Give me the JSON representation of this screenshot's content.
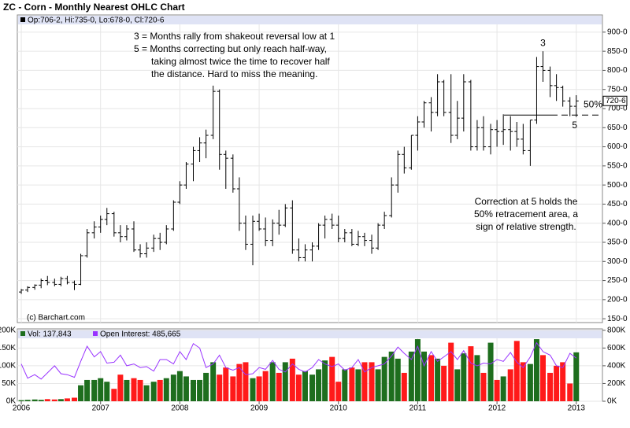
{
  "chart_data": [
    {
      "type": "ohlc",
      "title": "ZC - Corn - Monthly Nearest OHLC Chart",
      "header": "Op:706-2, Hi:735-0, Lo:678-0, Cl:720-6",
      "copyright": "(c) Barchart.com",
      "color": "#000000",
      "x": [
        2006,
        2006.08,
        2006.17,
        2006.25,
        2006.33,
        2006.42,
        2006.5,
        2006.58,
        2006.67,
        2006.75,
        2006.83,
        2006.92,
        2007,
        2007.08,
        2007.17,
        2007.25,
        2007.33,
        2007.42,
        2007.5,
        2007.58,
        2007.67,
        2007.75,
        2007.83,
        2007.92,
        2008,
        2008.08,
        2008.17,
        2008.25,
        2008.33,
        2008.42,
        2008.5,
        2008.58,
        2008.67,
        2008.75,
        2008.83,
        2008.92,
        2009,
        2009.08,
        2009.17,
        2009.25,
        2009.33,
        2009.42,
        2009.5,
        2009.58,
        2009.67,
        2009.75,
        2009.83,
        2009.92,
        2010,
        2010.08,
        2010.17,
        2010.25,
        2010.33,
        2010.42,
        2010.5,
        2010.58,
        2010.67,
        2010.75,
        2010.83,
        2010.92,
        2011,
        2011.08,
        2011.17,
        2011.25,
        2011.33,
        2011.42,
        2011.5,
        2011.58,
        2011.67,
        2011.75,
        2011.83,
        2011.92,
        2012,
        2012.08,
        2012.17,
        2012.25,
        2012.33,
        2012.42,
        2012.5,
        2012.58,
        2012.67,
        2012.75,
        2012.83,
        2012.92,
        2013
      ],
      "open": [
        220,
        225,
        232,
        238,
        250,
        245,
        240,
        255,
        245,
        240,
        315,
        375,
        390,
        410,
        425,
        375,
        365,
        385,
        330,
        320,
        335,
        360,
        350,
        385,
        455,
        500,
        555,
        590,
        610,
        630,
        745,
        580,
        570,
        490,
        400,
        345,
        405,
        385,
        355,
        400,
        395,
        440,
        330,
        310,
        330,
        340,
        395,
        410,
        395,
        360,
        375,
        345,
        365,
        355,
        335,
        395,
        420,
        500,
        580,
        545,
        630,
        665,
        715,
        690,
        770,
        690,
        630,
        675,
        770,
        600,
        650,
        600,
        645,
        640,
        645,
        640,
        620,
        590,
        670,
        810,
        800,
        760,
        755,
        720,
        706
      ],
      "high": [
        228,
        235,
        240,
        255,
        262,
        255,
        260,
        262,
        250,
        320,
        385,
        405,
        420,
        440,
        430,
        395,
        395,
        405,
        345,
        350,
        370,
        375,
        395,
        460,
        510,
        560,
        600,
        625,
        645,
        760,
        750,
        590,
        580,
        520,
        420,
        420,
        425,
        415,
        410,
        435,
        450,
        460,
        360,
        345,
        350,
        400,
        420,
        425,
        420,
        385,
        385,
        380,
        375,
        370,
        400,
        430,
        520,
        590,
        600,
        630,
        680,
        720,
        730,
        790,
        775,
        790,
        720,
        790,
        775,
        670,
        680,
        660,
        670,
        685,
        680,
        665,
        660,
        670,
        835,
        850,
        810,
        790,
        760,
        730,
        735
      ],
      "low": [
        215,
        220,
        226,
        230,
        238,
        235,
        235,
        240,
        225,
        238,
        310,
        360,
        375,
        395,
        365,
        350,
        355,
        325,
        310,
        310,
        325,
        330,
        345,
        380,
        450,
        490,
        510,
        560,
        570,
        620,
        540,
        490,
        480,
        380,
        330,
        290,
        380,
        340,
        340,
        370,
        390,
        320,
        300,
        300,
        300,
        330,
        360,
        385,
        350,
        350,
        340,
        340,
        340,
        320,
        330,
        385,
        415,
        480,
        530,
        540,
        590,
        650,
        640,
        680,
        680,
        610,
        620,
        640,
        590,
        590,
        590,
        580,
        600,
        605,
        590,
        600,
        580,
        550,
        660,
        770,
        730,
        720,
        705,
        680,
        678
      ],
      "close": [
        225,
        232,
        238,
        250,
        245,
        240,
        255,
        245,
        240,
        315,
        375,
        390,
        410,
        425,
        375,
        365,
        385,
        330,
        320,
        335,
        360,
        350,
        385,
        455,
        500,
        555,
        590,
        610,
        630,
        745,
        580,
        570,
        490,
        400,
        345,
        405,
        385,
        355,
        400,
        395,
        440,
        330,
        310,
        330,
        340,
        395,
        410,
        395,
        360,
        375,
        345,
        365,
        355,
        335,
        395,
        420,
        500,
        580,
        545,
        630,
        665,
        715,
        690,
        770,
        690,
        630,
        675,
        770,
        600,
        650,
        600,
        645,
        640,
        645,
        640,
        620,
        590,
        670,
        810,
        800,
        760,
        755,
        720,
        706,
        720
      ],
      "last_label": "720-6",
      "xlim": [
        2005.95,
        2013.33
      ],
      "ylim": [
        140,
        945
      ],
      "yticks": [
        {
          "value": 150,
          "label": "150-0"
        },
        {
          "value": 200,
          "label": "200-0"
        },
        {
          "value": 250,
          "label": "250-0"
        },
        {
          "value": 300,
          "label": "300-0"
        },
        {
          "value": 350,
          "label": "350-0"
        },
        {
          "value": 400,
          "label": "400-0"
        },
        {
          "value": 450,
          "label": "450-0"
        },
        {
          "value": 500,
          "label": "500-0"
        },
        {
          "value": 550,
          "label": "550-0"
        },
        {
          "value": 600,
          "label": "600-0"
        },
        {
          "value": 650,
          "label": "650-0"
        },
        {
          "value": 700,
          "label": "700-0"
        },
        {
          "value": 750,
          "label": "750-0"
        },
        {
          "value": 800,
          "label": "800-0"
        },
        {
          "value": 850,
          "label": "850-0"
        },
        {
          "value": 900,
          "label": "900-0"
        }
      ],
      "grid": true,
      "retracement_level": 683,
      "retracement_label": "50%",
      "wave_labels": [
        {
          "text": "3",
          "x": 2012.58,
          "y": 870
        },
        {
          "text": "5",
          "x": 2012.98,
          "y": 655
        }
      ],
      "annotations": [
        {
          "lines": [
            "3 = Months rally from shakeout reversal low at 1",
            "5 = Months correcting but only reach half-way,",
            "taking almost twice the time to recover half",
            "the distance.  Hard to miss the meaning."
          ]
        },
        {
          "lines": [
            "Correction at 5 holds the",
            "50% retracement area, a",
            "sign of relative strength."
          ]
        }
      ]
    },
    {
      "type": "volume",
      "up_color": "#1e6e1e",
      "down_color": "#ff1a1a",
      "series": [
        {
          "name": "Vol: 137,843",
          "color": "#1e6e1e",
          "values": [
            3000,
            4000,
            5000,
            4000,
            6000,
            5000,
            6000,
            8000,
            10000,
            45000,
            60000,
            60000,
            65000,
            55000,
            35000,
            75000,
            60000,
            65000,
            60000,
            45000,
            55000,
            60000,
            65000,
            75000,
            85000,
            70000,
            60000,
            60000,
            80000,
            110000,
            75000,
            95000,
            70000,
            105000,
            110000,
            65000,
            70000,
            85000,
            110000,
            80000,
            110000,
            120000,
            75000,
            85000,
            75000,
            90000,
            115000,
            125000,
            55000,
            90000,
            95000,
            90000,
            110000,
            110000,
            90000,
            125000,
            140000,
            120000,
            80000,
            140000,
            175000,
            140000,
            130000,
            120000,
            100000,
            165000,
            90000,
            135000,
            155000,
            130000,
            80000,
            165000,
            60000,
            70000,
            90000,
            170000,
            110000,
            105000,
            175000,
            130000,
            80000,
            100000,
            110000,
            50000,
            137843
          ]
        },
        {
          "name": "Open Interest: 485,665",
          "color": "#9933ff",
          "axis": "y2",
          "values": [
            420000,
            260000,
            300000,
            250000,
            320000,
            400000,
            310000,
            300000,
            270000,
            450000,
            620000,
            500000,
            560000,
            430000,
            440000,
            520000,
            400000,
            420000,
            380000,
            390000,
            340000,
            470000,
            470000,
            420000,
            560000,
            470000,
            650000,
            600000,
            380000,
            420000,
            520000,
            380000,
            350000,
            380000,
            300000,
            310000,
            380000,
            360000,
            460000,
            360000,
            330000,
            420000,
            360000,
            330000,
            380000,
            470000,
            420000,
            390000,
            420000,
            350000,
            380000,
            470000,
            330000,
            380000,
            400000,
            420000,
            510000,
            610000,
            540000,
            470000,
            620000,
            400000,
            560000,
            450000,
            500000,
            560000,
            470000,
            570000,
            430000,
            400000,
            430000,
            420000,
            470000,
            450000,
            550000,
            440000,
            380000,
            500000,
            660000,
            560000,
            520000,
            400000,
            380000,
            540000,
            485665
          ]
        }
      ],
      "ylim": [
        0,
        204000
      ],
      "yticks": [
        {
          "value": 0,
          "label": "0K"
        },
        {
          "value": 50000,
          "label": "50K"
        },
        {
          "value": 100000,
          "label": "100K"
        },
        {
          "value": 150000,
          "label": "150K"
        },
        {
          "value": 200000,
          "label": "200K"
        }
      ],
      "y2lim": [
        0,
        816000
      ],
      "y2ticks": [
        {
          "value": 0,
          "label": "0K"
        },
        {
          "value": 200000,
          "label": "200K"
        },
        {
          "value": 400000,
          "label": "400K"
        },
        {
          "value": 600000,
          "label": "600K"
        },
        {
          "value": 800000,
          "label": "800K"
        }
      ],
      "xticks": [
        2006,
        2007,
        2008,
        2009,
        2010,
        2011,
        2012,
        2013
      ]
    }
  ]
}
